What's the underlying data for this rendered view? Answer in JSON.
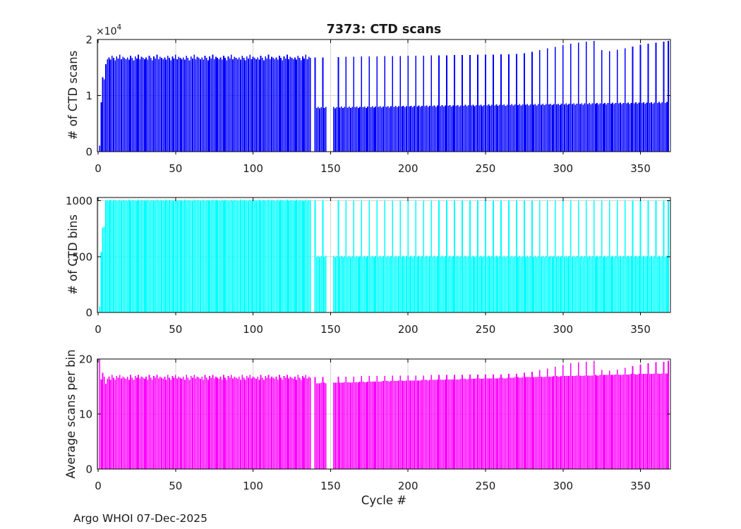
{
  "figure": {
    "title": "7373: CTD scans",
    "xlabel": "Cycle #",
    "footer": "Argo WHOI 07-Dec-2025",
    "exponent_base": "×10",
    "exponent_power": "4",
    "background": "#ffffff",
    "axis_color": "#000000",
    "grid_color": "#d6d6d6"
  },
  "chart_data": [
    {
      "type": "bar",
      "title": "7373: CTD scans",
      "ylabel": "# of CTD scans",
      "color": "#0000ff",
      "ylim": [
        0,
        20000
      ],
      "yticks": [
        0,
        10000,
        20000
      ],
      "ytick_labels": [
        "0",
        "1",
        "2"
      ],
      "y_exponent": "×10^4",
      "xticks": [
        0,
        50,
        100,
        150,
        200,
        250,
        300,
        350
      ],
      "x_start": 1,
      "grid": true,
      "values": [
        1100,
        8800,
        13300,
        12900,
        15600,
        16500,
        16800,
        16400,
        17100,
        16700,
        16300,
        17000,
        16600,
        17300,
        16500,
        16900,
        16700,
        16500,
        16800,
        16400,
        17100,
        16700,
        16300,
        17000,
        16600,
        17300,
        16500,
        16900,
        16700,
        16500,
        16800,
        16400,
        17100,
        16700,
        16300,
        17000,
        16600,
        17300,
        16500,
        16900,
        16700,
        16500,
        16800,
        16400,
        17100,
        16700,
        16300,
        17000,
        16600,
        17300,
        16500,
        16900,
        16700,
        16500,
        16800,
        16400,
        17100,
        16700,
        16300,
        17000,
        16600,
        17300,
        16500,
        16900,
        16700,
        16500,
        16800,
        16400,
        17100,
        16700,
        16300,
        17000,
        16600,
        17300,
        16500,
        16900,
        16700,
        16500,
        16800,
        16400,
        17100,
        16700,
        16300,
        17000,
        16600,
        17300,
        16500,
        16900,
        16700,
        16500,
        16800,
        16400,
        17100,
        16700,
        16300,
        17000,
        16600,
        17300,
        16500,
        16900,
        16700,
        16500,
        16800,
        16400,
        17100,
        16700,
        16300,
        17000,
        16600,
        17300,
        16500,
        16900,
        16700,
        16500,
        16800,
        16400,
        17100,
        16700,
        16300,
        17000,
        16600,
        17300,
        16500,
        16900,
        16700,
        16500,
        16800,
        16400,
        17100,
        16700,
        16300,
        17000,
        16600,
        17300,
        16500,
        16900,
        16700,
        0,
        0,
        16800,
        7810,
        7960,
        7710,
        7910,
        16810,
        7830,
        7980,
        0,
        0,
        0,
        0,
        8000,
        7750,
        7950,
        16870,
        7870,
        8020,
        7770,
        7970,
        16900,
        7890,
        8040,
        7790,
        7990,
        16930,
        7910,
        8060,
        7810,
        8010,
        16960,
        7930,
        8080,
        7830,
        8030,
        16990,
        7950,
        8100,
        7850,
        8050,
        17010,
        7970,
        8120,
        7870,
        8070,
        17030,
        7990,
        8140,
        7890,
        8090,
        17050,
        8010,
        8160,
        7910,
        8110,
        17070,
        8030,
        8180,
        7930,
        8130,
        17090,
        8050,
        8200,
        7950,
        8150,
        17110,
        8070,
        8220,
        7970,
        8170,
        17130,
        8090,
        8240,
        7990,
        8190,
        17150,
        8110,
        8260,
        8010,
        8210,
        17170,
        8130,
        8280,
        8030,
        8230,
        17190,
        8150,
        8300,
        8050,
        8250,
        17210,
        8170,
        8320,
        8070,
        8270,
        17230,
        8190,
        8340,
        8090,
        8290,
        17250,
        8210,
        8360,
        8110,
        8310,
        17270,
        8230,
        8380,
        8130,
        8330,
        17290,
        8250,
        8400,
        8150,
        8350,
        17310,
        8270,
        8420,
        8170,
        8370,
        17330,
        8290,
        8440,
        8190,
        8390,
        17360,
        8310,
        8460,
        8210,
        8410,
        17400,
        8330,
        8480,
        8230,
        8430,
        17550,
        8350,
        8500,
        8250,
        8450,
        17800,
        8370,
        8520,
        8270,
        8470,
        18100,
        8390,
        8540,
        8290,
        8490,
        18400,
        8410,
        8560,
        8310,
        8510,
        18700,
        8430,
        8580,
        8330,
        8530,
        19000,
        8450,
        8600,
        8350,
        8550,
        19250,
        8470,
        8620,
        8370,
        8570,
        19450,
        8490,
        8640,
        8390,
        8590,
        19600,
        8510,
        8660,
        8410,
        8610,
        19750,
        8530,
        8680,
        8430,
        8630,
        18100,
        8550,
        8700,
        8450,
        8650,
        17950,
        8570,
        8720,
        8470,
        8670,
        18150,
        8590,
        8740,
        8490,
        8690,
        18450,
        8610,
        8760,
        8510,
        8710,
        18750,
        8630,
        8780,
        8530,
        8730,
        19050,
        8650,
        8800,
        8550,
        8750,
        19250,
        8670,
        8820,
        8570,
        8770,
        19450,
        8690,
        8840,
        8590,
        8790,
        19650,
        8710,
        8860,
        19750
      ]
    },
    {
      "type": "bar",
      "ylabel": "# of CTD bins",
      "color": "#00ffff",
      "ylim": [
        0,
        1030
      ],
      "yticks": [
        0,
        500,
        1000
      ],
      "ytick_labels": [
        "0",
        "500",
        "1000"
      ],
      "xticks": [
        0,
        50,
        100,
        150,
        200,
        250,
        300,
        350
      ],
      "x_start": 1,
      "grid": true,
      "values": [
        55,
        540,
        760,
        770,
        1005,
        1005,
        1000,
        1010,
        1002,
        1008,
        1004,
        1005,
        1000,
        1010,
        1002,
        1008,
        1004,
        1005,
        1000,
        1010,
        1002,
        1008,
        1004,
        1005,
        1000,
        1010,
        1002,
        1008,
        1004,
        1005,
        1000,
        1010,
        1002,
        1008,
        1004,
        1005,
        1000,
        1010,
        1002,
        1008,
        1004,
        1005,
        1000,
        1010,
        1002,
        1008,
        1004,
        1005,
        1000,
        1010,
        1002,
        1008,
        1004,
        1005,
        1000,
        1010,
        1002,
        1008,
        1004,
        1005,
        1000,
        1010,
        1002,
        1008,
        1004,
        1005,
        1000,
        1010,
        1002,
        1008,
        1004,
        1005,
        1000,
        1010,
        1002,
        1008,
        1004,
        1005,
        1000,
        1010,
        1002,
        1008,
        1004,
        1005,
        1000,
        1010,
        1002,
        1008,
        1004,
        1005,
        1000,
        1010,
        1002,
        1008,
        1004,
        1005,
        1000,
        1010,
        1002,
        1008,
        1004,
        1005,
        1000,
        1010,
        1002,
        1008,
        1004,
        1005,
        1000,
        1010,
        1002,
        1008,
        1004,
        1005,
        1000,
        1010,
        1002,
        1008,
        1004,
        1005,
        1000,
        1010,
        1002,
        1008,
        1004,
        1005,
        1000,
        1010,
        1002,
        1008,
        1004,
        1005,
        1000,
        1010,
        1002,
        1008,
        1004,
        0,
        0,
        1005,
        500,
        510,
        495,
        505,
        1005,
        500,
        510,
        0,
        0,
        0,
        0,
        510,
        495,
        505,
        1005,
        500,
        510,
        495,
        505,
        1005,
        500,
        510,
        495,
        505,
        1005,
        500,
        510,
        495,
        505,
        1005,
        500,
        510,
        495,
        505,
        1005,
        500,
        510,
        495,
        505,
        1005,
        500,
        510,
        495,
        505,
        1005,
        500,
        510,
        495,
        505,
        1005,
        500,
        510,
        495,
        505,
        1005,
        500,
        510,
        495,
        505,
        1005,
        500,
        510,
        495,
        505,
        1005,
        500,
        510,
        495,
        505,
        1005,
        500,
        510,
        495,
        505,
        1005,
        500,
        510,
        495,
        505,
        1005,
        500,
        510,
        495,
        505,
        1005,
        500,
        510,
        495,
        505,
        1005,
        500,
        510,
        495,
        505,
        1005,
        500,
        510,
        495,
        505,
        1005,
        500,
        510,
        495,
        505,
        1005,
        500,
        510,
        495,
        505,
        1005,
        500,
        510,
        495,
        505,
        1005,
        500,
        510,
        495,
        505,
        1005,
        500,
        510,
        495,
        505,
        1005,
        500,
        510,
        495,
        505,
        1005,
        500,
        510,
        495,
        505,
        1005,
        500,
        510,
        495,
        505,
        1005,
        500,
        510,
        495,
        505,
        1005,
        500,
        510,
        495,
        505,
        1005,
        500,
        510,
        495,
        505,
        1005,
        500,
        510,
        495,
        505,
        1005,
        500,
        510,
        495,
        505,
        1005,
        500,
        510,
        495,
        505,
        1005,
        500,
        510,
        495,
        505,
        1005,
        500,
        510,
        495,
        505,
        1005,
        500,
        510,
        495,
        505,
        1005,
        500,
        510,
        495,
        505,
        1005,
        500,
        510,
        495,
        505,
        1005,
        500,
        510,
        495,
        505,
        1005,
        500,
        510,
        495,
        505,
        1005,
        500,
        510,
        495,
        505,
        1005,
        500,
        510,
        495,
        505,
        1005,
        500,
        510,
        495,
        505,
        1005,
        500,
        510,
        495,
        505,
        1005,
        500,
        510,
        1005
      ]
    },
    {
      "type": "bar",
      "ylabel": "Average scans per bin",
      "xlabel": "Cycle #",
      "color": "#ff00ff",
      "ylim": [
        0,
        20
      ],
      "yticks": [
        0,
        10,
        20
      ],
      "ytick_labels": [
        "0",
        "10",
        "20"
      ],
      "xticks": [
        0,
        50,
        100,
        150,
        200,
        250,
        300,
        350
      ],
      "x_start": 1,
      "grid": true,
      "values": [
        20.0,
        16.3,
        17.5,
        16.8,
        15.5,
        16.4,
        16.8,
        16.2,
        17.1,
        16.6,
        16.2,
        16.9,
        16.6,
        17.1,
        16.5,
        16.8,
        16.6,
        16.4,
        16.8,
        16.2,
        17.1,
        16.6,
        16.2,
        16.9,
        16.6,
        17.1,
        16.5,
        16.8,
        16.6,
        16.4,
        16.8,
        16.2,
        17.1,
        16.6,
        16.2,
        16.9,
        16.6,
        17.1,
        16.5,
        16.8,
        16.6,
        16.4,
        16.8,
        16.2,
        17.1,
        16.6,
        16.2,
        16.9,
        16.6,
        17.1,
        16.5,
        16.8,
        16.6,
        16.4,
        16.8,
        16.2,
        17.1,
        16.6,
        16.2,
        16.9,
        16.6,
        17.1,
        16.5,
        16.8,
        16.6,
        16.4,
        16.8,
        16.2,
        17.1,
        16.6,
        16.2,
        16.9,
        16.6,
        17.1,
        16.5,
        16.8,
        16.6,
        16.4,
        16.8,
        16.2,
        17.1,
        16.6,
        16.2,
        16.9,
        16.6,
        17.1,
        16.5,
        16.8,
        16.6,
        16.4,
        16.8,
        16.2,
        17.1,
        16.6,
        16.2,
        16.9,
        16.6,
        17.1,
        16.5,
        16.8,
        16.6,
        16.4,
        16.8,
        16.2,
        17.1,
        16.6,
        16.2,
        16.9,
        16.6,
        17.1,
        16.5,
        16.8,
        16.6,
        16.4,
        16.8,
        16.2,
        17.1,
        16.6,
        16.2,
        16.9,
        16.6,
        17.1,
        16.5,
        16.8,
        16.6,
        16.4,
        16.8,
        16.2,
        17.1,
        16.6,
        16.2,
        16.9,
        16.6,
        17.1,
        16.5,
        16.8,
        16.6,
        0,
        0,
        16.7,
        15.6,
        15.6,
        15.6,
        15.7,
        16.7,
        15.7,
        15.6,
        0,
        0,
        0,
        0,
        15.7,
        15.7,
        15.7,
        16.8,
        15.7,
        15.7,
        15.7,
        15.8,
        16.8,
        15.8,
        15.8,
        15.7,
        15.8,
        16.8,
        15.8,
        15.8,
        15.8,
        15.9,
        16.9,
        15.9,
        15.8,
        15.8,
        15.9,
        16.9,
        15.9,
        15.9,
        15.9,
        15.9,
        16.9,
        15.9,
        15.9,
        15.9,
        16.0,
        16.9,
        16.0,
        16.0,
        15.9,
        16.0,
        17.0,
        16.0,
        16.0,
        16.0,
        16.1,
        17.0,
        16.1,
        16.0,
        16.0,
        16.1,
        17.0,
        16.1,
        16.1,
        16.1,
        16.1,
        17.0,
        16.1,
        16.1,
        16.1,
        16.2,
        17.0,
        16.2,
        16.2,
        16.1,
        16.2,
        17.1,
        16.2,
        16.2,
        16.2,
        16.3,
        17.1,
        16.3,
        16.2,
        16.2,
        16.3,
        17.1,
        16.3,
        16.3,
        16.3,
        16.3,
        17.1,
        16.3,
        16.3,
        16.3,
        16.4,
        17.1,
        16.4,
        16.4,
        16.3,
        16.4,
        17.2,
        16.4,
        16.4,
        16.4,
        16.5,
        17.2,
        16.5,
        16.4,
        16.4,
        16.5,
        17.2,
        16.5,
        16.5,
        16.5,
        16.5,
        17.2,
        16.5,
        16.5,
        16.5,
        16.6,
        17.2,
        16.6,
        16.5,
        16.5,
        16.6,
        17.3,
        16.6,
        16.6,
        16.6,
        16.7,
        17.3,
        16.7,
        16.6,
        16.6,
        16.7,
        17.5,
        16.7,
        16.7,
        16.7,
        16.7,
        17.7,
        16.7,
        16.7,
        16.7,
        16.8,
        18.0,
        16.8,
        16.7,
        16.7,
        16.8,
        18.3,
        16.8,
        16.8,
        16.8,
        16.9,
        18.6,
        16.9,
        16.8,
        16.8,
        16.9,
        18.9,
        16.9,
        16.9,
        16.9,
        16.9,
        19.2,
        16.9,
        16.9,
        16.9,
        17.0,
        19.4,
        17.0,
        16.9,
        16.9,
        17.0,
        19.5,
        17.0,
        17.0,
        17.0,
        17.0,
        19.7,
        17.1,
        17.0,
        17.0,
        17.1,
        18.0,
        17.1,
        17.1,
        17.1,
        17.1,
        17.9,
        17.1,
        17.1,
        17.1,
        17.2,
        18.1,
        17.2,
        17.1,
        17.1,
        17.2,
        18.4,
        17.2,
        17.2,
        17.2,
        17.3,
        18.7,
        17.3,
        17.2,
        17.2,
        17.3,
        19.0,
        17.3,
        17.3,
        17.3,
        17.3,
        19.2,
        17.3,
        17.3,
        17.3,
        17.4,
        19.4,
        17.4,
        17.3,
        17.3,
        17.4,
        19.5,
        17.4,
        17.4,
        19.7
      ]
    }
  ]
}
